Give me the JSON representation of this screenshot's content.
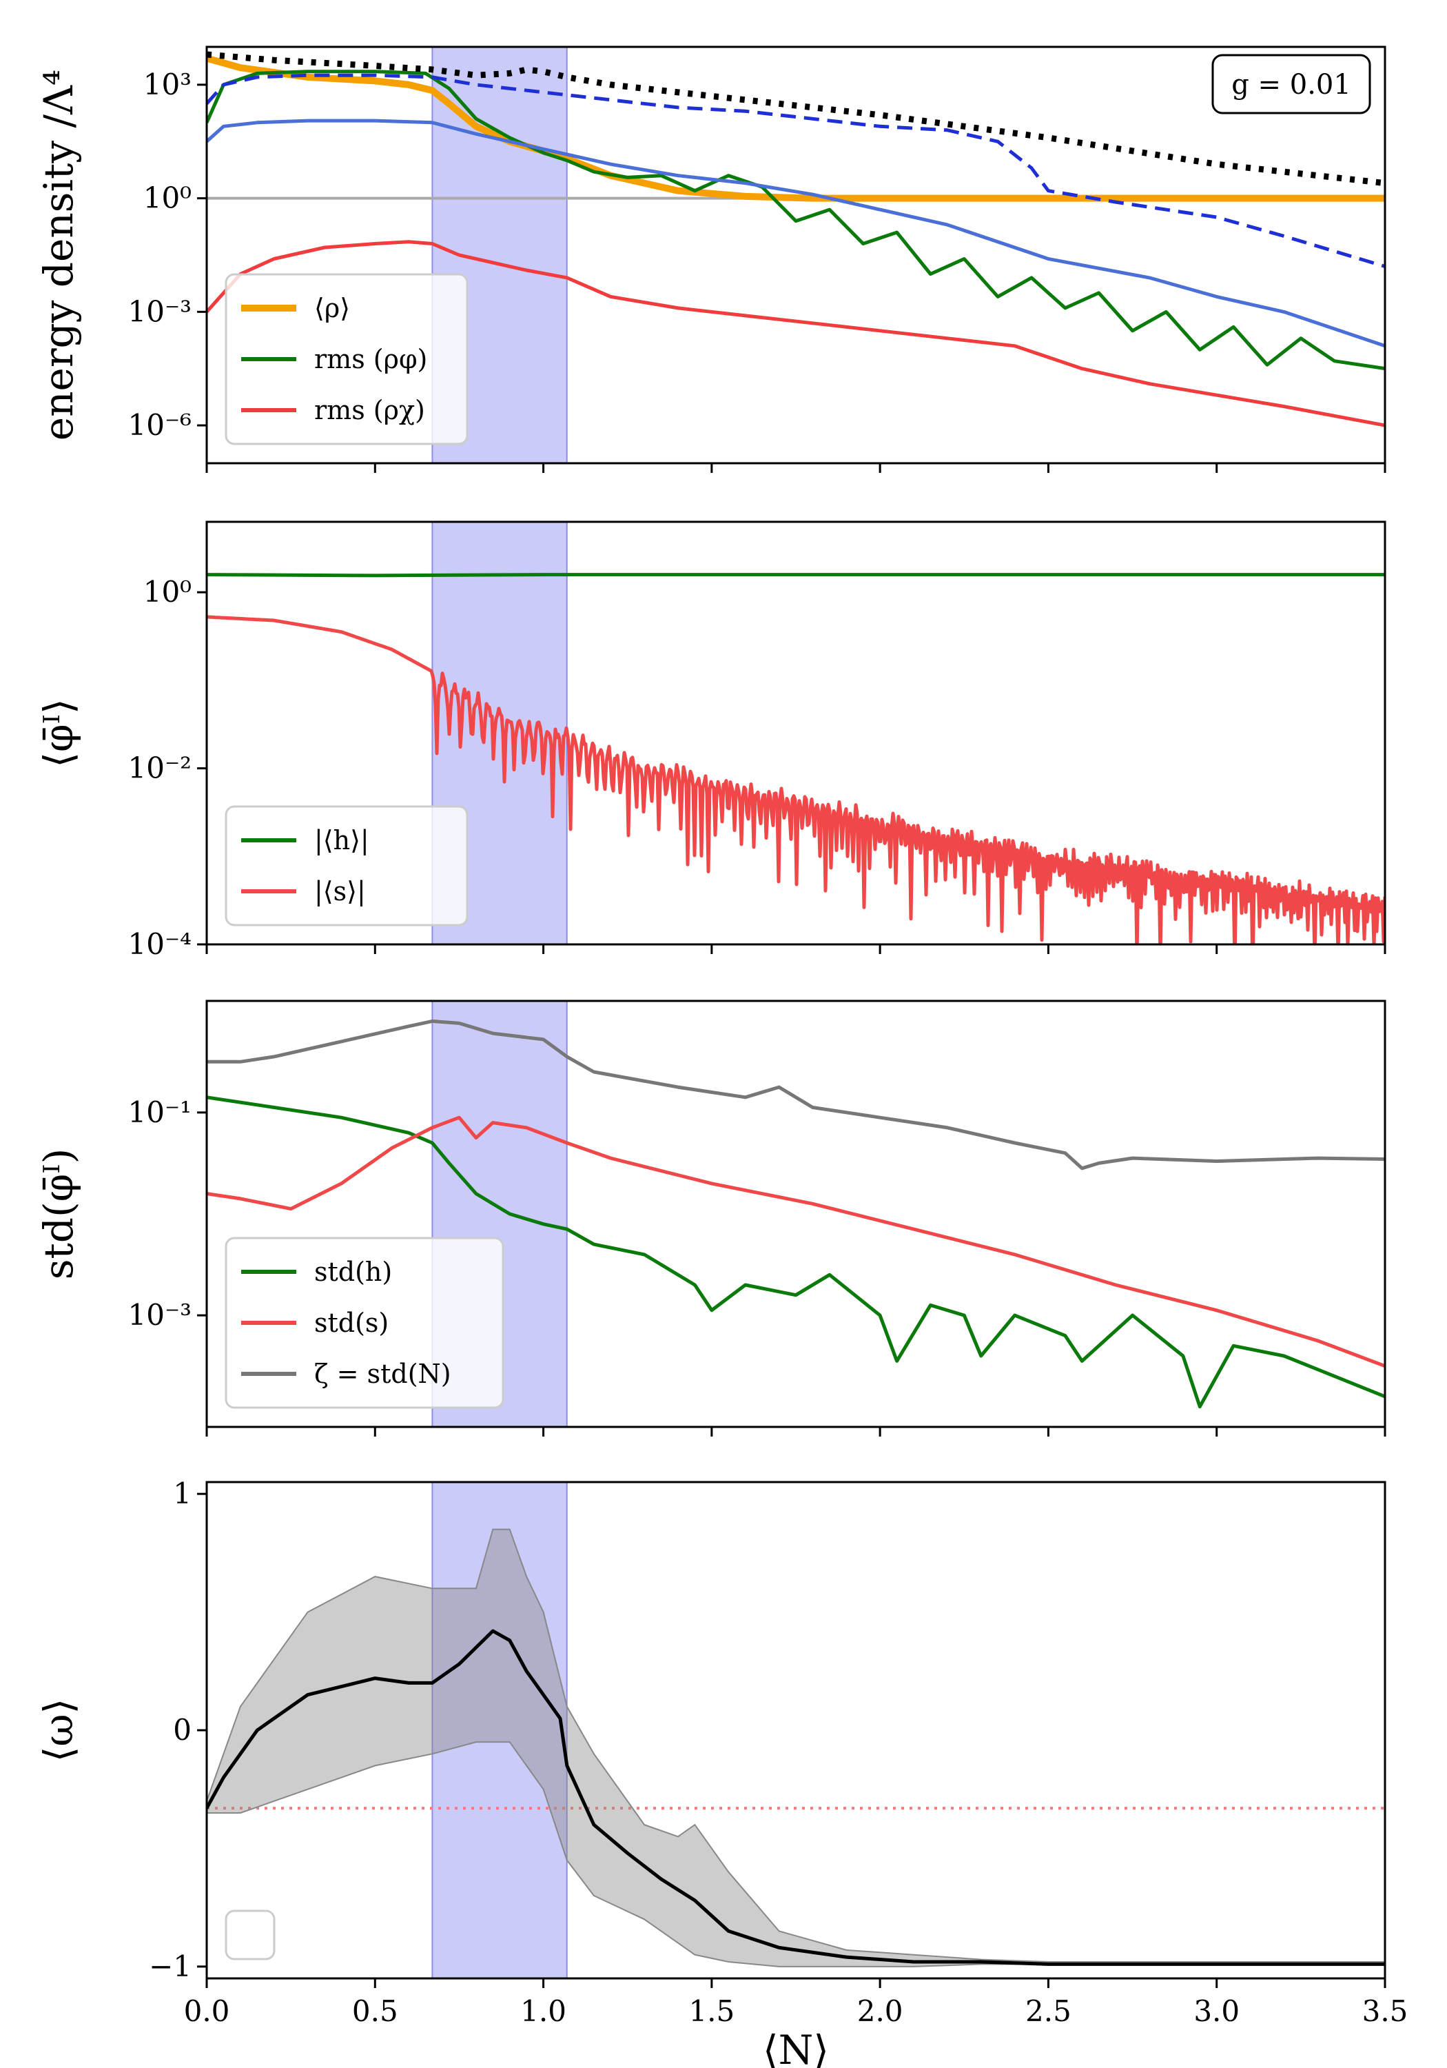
{
  "shared": {
    "shaded_band": {
      "x_start": 0.67,
      "x_end": 1.07,
      "color": "#7777ee"
    },
    "x_axis": {
      "label": "⟨N⟩",
      "range": [
        0.0,
        3.5
      ],
      "ticks": [
        0.0,
        0.5,
        1.0,
        1.5,
        2.0,
        2.5,
        3.0,
        3.5
      ],
      "tick_labels": [
        "0.0",
        "0.5",
        "1.0",
        "1.5",
        "2.0",
        "2.5",
        "3.0",
        "3.5"
      ]
    }
  },
  "chart_data": [
    {
      "type": "line",
      "panel": "energy",
      "ylabel": "energy density /Λ⁴",
      "yscale": "log",
      "ylim_log10": [
        -7,
        4
      ],
      "yticks": [
        {
          "exp": 3,
          "label": "10³"
        },
        {
          "exp": 0,
          "label": "10⁰"
        },
        {
          "exp": -3,
          "label": "10⁻³"
        },
        {
          "exp": -6,
          "label": "10⁻⁶"
        }
      ],
      "annotation": "g = 0.01",
      "legend": {
        "position": "lower-left",
        "entries": [
          {
            "label": "⟨ρ⟩",
            "color": "#f5a000"
          },
          {
            "label": "rms (ρφ)",
            "color": "#0a7a0a"
          },
          {
            "label": "rms (ρχ)",
            "color": "#f03c3c"
          }
        ]
      },
      "reference_line": {
        "y_log10": 0,
        "color": "#aaaaaa"
      },
      "series": [
        {
          "name": "⟨ρ⟩",
          "color": "#f5a000",
          "style": "solid",
          "x": [
            0,
            0.1,
            0.3,
            0.5,
            0.6,
            0.67,
            0.72,
            0.8,
            0.9,
            1.0,
            1.07,
            1.2,
            1.4,
            1.6,
            1.8,
            2.0,
            2.5,
            3.0,
            3.5
          ],
          "y_log10": [
            3.7,
            3.45,
            3.2,
            3.1,
            3.0,
            2.85,
            2.5,
            1.9,
            1.5,
            1.25,
            1.05,
            0.6,
            0.2,
            0.05,
            0.0,
            0.0,
            0.0,
            0.0,
            0.0
          ]
        },
        {
          "name": "rms (ρφ)",
          "color": "#0a7a0a",
          "style": "solid",
          "x": [
            0,
            0.05,
            0.15,
            0.3,
            0.5,
            0.65,
            0.72,
            0.8,
            0.9,
            1.0,
            1.07,
            1.15,
            1.25,
            1.35,
            1.45,
            1.55,
            1.65,
            1.75,
            1.85,
            1.95,
            2.05,
            2.15,
            2.25,
            2.35,
            2.45,
            2.55,
            2.65,
            2.75,
            2.85,
            2.95,
            3.05,
            3.15,
            3.25,
            3.35,
            3.5
          ],
          "y_log10": [
            2.0,
            3.0,
            3.3,
            3.35,
            3.35,
            3.3,
            2.9,
            2.1,
            1.6,
            1.2,
            1.0,
            0.7,
            0.55,
            0.6,
            0.2,
            0.6,
            0.3,
            -0.6,
            -0.3,
            -1.2,
            -0.9,
            -2.0,
            -1.6,
            -2.6,
            -2.1,
            -2.9,
            -2.5,
            -3.5,
            -3.0,
            -4.0,
            -3.4,
            -4.4,
            -3.7,
            -4.3,
            -4.5
          ]
        },
        {
          "name": "rms (ρχ)",
          "color": "#f03c3c",
          "style": "solid",
          "x": [
            0,
            0.1,
            0.2,
            0.35,
            0.5,
            0.6,
            0.67,
            0.75,
            0.85,
            0.95,
            1.07,
            1.2,
            1.4,
            1.6,
            1.8,
            2.0,
            2.2,
            2.4,
            2.6,
            2.8,
            3.0,
            3.2,
            3.5
          ],
          "y_log10": [
            -3.0,
            -2.0,
            -1.6,
            -1.3,
            -1.2,
            -1.15,
            -1.2,
            -1.5,
            -1.7,
            -1.9,
            -2.1,
            -2.6,
            -2.9,
            -3.1,
            -3.3,
            -3.5,
            -3.7,
            -3.9,
            -4.5,
            -4.9,
            -5.2,
            -5.5,
            -6.0
          ]
        },
        {
          "name": "blue",
          "color": "#4a6fd6",
          "style": "solid",
          "x": [
            0,
            0.05,
            0.15,
            0.3,
            0.5,
            0.67,
            0.8,
            1.0,
            1.2,
            1.4,
            1.6,
            1.8,
            2.0,
            2.2,
            2.5,
            2.8,
            3.0,
            3.2,
            3.5
          ],
          "y_log10": [
            1.5,
            1.9,
            2.0,
            2.05,
            2.05,
            2.0,
            1.7,
            1.3,
            0.9,
            0.6,
            0.4,
            0.1,
            -0.3,
            -0.7,
            -1.6,
            -2.1,
            -2.6,
            -3.0,
            -3.9
          ]
        },
        {
          "name": "blue-dashed",
          "color": "#1f2fd6",
          "style": "dashed",
          "x": [
            0,
            0.05,
            0.15,
            0.3,
            0.5,
            0.67,
            0.8,
            1.0,
            1.2,
            1.4,
            1.6,
            1.8,
            2.0,
            2.2,
            2.35,
            2.45,
            2.5,
            2.7,
            3.0,
            3.2,
            3.5
          ],
          "y_log10": [
            2.5,
            3.0,
            3.2,
            3.25,
            3.25,
            3.2,
            3.0,
            2.8,
            2.6,
            2.4,
            2.3,
            2.1,
            1.9,
            1.8,
            1.5,
            0.8,
            0.2,
            -0.1,
            -0.5,
            -1.0,
            -1.8
          ]
        },
        {
          "name": "black-dotted",
          "color": "#000000",
          "style": "dotted",
          "x": [
            0,
            0.2,
            0.5,
            0.67,
            0.8,
            0.9,
            0.95,
            1.0,
            1.07,
            1.2,
            1.5,
            2.0,
            2.5,
            3.0,
            3.5
          ],
          "y_log10": [
            3.8,
            3.65,
            3.5,
            3.4,
            3.25,
            3.3,
            3.4,
            3.35,
            3.2,
            3.0,
            2.7,
            2.2,
            1.6,
            0.9,
            0.4
          ]
        }
      ]
    },
    {
      "type": "line",
      "panel": "field-mean",
      "ylabel": "⟨φ̄ᴵ⟩",
      "yscale": "log",
      "ylim_log10": [
        -4,
        0.8
      ],
      "yticks": [
        {
          "exp": 0,
          "label": "10⁰"
        },
        {
          "exp": -2,
          "label": "10⁻²"
        },
        {
          "exp": -4,
          "label": "10⁻⁴"
        }
      ],
      "legend": {
        "position": "lower-left",
        "entries": [
          {
            "label": "|⟨h⟩|",
            "color": "#0a7a0a"
          },
          {
            "label": "|⟨s⟩|",
            "color": "#f04848"
          }
        ]
      },
      "series": [
        {
          "name": "|⟨h⟩|",
          "color": "#0a7a0a",
          "x": [
            0,
            0.5,
            1.0,
            2.0,
            3.5
          ],
          "y_log10": [
            0.2,
            0.19,
            0.2,
            0.2,
            0.2
          ]
        },
        {
          "name": "|⟨s⟩| envelope",
          "color": "#f04848",
          "x": [
            0,
            0.2,
            0.4,
            0.55,
            0.67,
            0.75,
            0.85,
            0.95,
            1.07,
            1.3,
            1.6,
            2.0,
            2.5,
            3.0,
            3.5
          ],
          "y_log10": [
            -0.28,
            -0.32,
            -0.45,
            -0.65,
            -0.9,
            -1.1,
            -1.3,
            -1.5,
            -1.6,
            -1.95,
            -2.2,
            -2.55,
            -2.95,
            -3.2,
            -3.5
          ]
        }
      ]
    },
    {
      "type": "line",
      "panel": "field-std",
      "ylabel": "std(φ̄ᴵ)",
      "yscale": "log",
      "ylim_log10": [
        -4.1,
        0.1
      ],
      "yticks": [
        {
          "exp": -1,
          "label": "10⁻¹"
        },
        {
          "exp": -3,
          "label": "10⁻³"
        }
      ],
      "legend": {
        "position": "lower-left",
        "entries": [
          {
            "label": "std(h)",
            "color": "#0a7a0a"
          },
          {
            "label": "std(s)",
            "color": "#f04848"
          },
          {
            "label": "ζ = std(N)",
            "color": "#777777"
          }
        ]
      },
      "series": [
        {
          "name": "std(h)",
          "color": "#0a7a0a",
          "x": [
            0,
            0.2,
            0.4,
            0.6,
            0.67,
            0.72,
            0.8,
            0.9,
            1.0,
            1.07,
            1.15,
            1.3,
            1.45,
            1.5,
            1.6,
            1.75,
            1.85,
            2.0,
            2.05,
            2.15,
            2.25,
            2.3,
            2.4,
            2.55,
            2.6,
            2.75,
            2.9,
            2.95,
            3.05,
            3.2,
            3.35,
            3.5
          ],
          "y_log10": [
            -0.85,
            -0.95,
            -1.05,
            -1.2,
            -1.3,
            -1.5,
            -1.8,
            -2.0,
            -2.1,
            -2.15,
            -2.3,
            -2.4,
            -2.7,
            -2.95,
            -2.7,
            -2.8,
            -2.6,
            -3.0,
            -3.45,
            -2.9,
            -3.0,
            -3.4,
            -3.0,
            -3.2,
            -3.45,
            -3.0,
            -3.4,
            -3.9,
            -3.3,
            -3.4,
            -3.6,
            -3.8
          ]
        },
        {
          "name": "std(s)",
          "color": "#f04848",
          "x": [
            0,
            0.1,
            0.25,
            0.4,
            0.55,
            0.67,
            0.75,
            0.8,
            0.85,
            0.95,
            1.07,
            1.2,
            1.5,
            1.8,
            2.1,
            2.4,
            2.7,
            3.0,
            3.3,
            3.5
          ],
          "y_log10": [
            -1.8,
            -1.85,
            -1.95,
            -1.7,
            -1.35,
            -1.15,
            -1.05,
            -1.25,
            -1.1,
            -1.15,
            -1.3,
            -1.45,
            -1.7,
            -1.9,
            -2.15,
            -2.4,
            -2.7,
            -2.95,
            -3.25,
            -3.5
          ]
        },
        {
          "name": "ζ = std(N)",
          "color": "#777777",
          "x": [
            0,
            0.1,
            0.2,
            0.4,
            0.6,
            0.67,
            0.75,
            0.85,
            1.0,
            1.07,
            1.15,
            1.4,
            1.6,
            1.7,
            1.8,
            2.0,
            2.2,
            2.4,
            2.55,
            2.6,
            2.65,
            2.75,
            3.0,
            3.3,
            3.5
          ],
          "y_log10": [
            -0.5,
            -0.5,
            -0.45,
            -0.3,
            -0.15,
            -0.1,
            -0.12,
            -0.22,
            -0.28,
            -0.45,
            -0.6,
            -0.75,
            -0.85,
            -0.75,
            -0.95,
            -1.05,
            -1.15,
            -1.3,
            -1.4,
            -1.55,
            -1.5,
            -1.45,
            -1.48,
            -1.45,
            -1.46
          ]
        }
      ]
    },
    {
      "type": "area",
      "panel": "omega",
      "ylabel": "⟨ω⟩",
      "yscale": "linear",
      "ylim": [
        -1.05,
        1.05
      ],
      "yticks": [
        {
          "value": 1,
          "label": "1"
        },
        {
          "value": 0,
          "label": "0"
        },
        {
          "value": -1,
          "label": "−1"
        }
      ],
      "reference_line": {
        "y": -0.33,
        "color": "#ff7777",
        "style": "dotted"
      },
      "legend": {
        "position": "lower-left",
        "entries": []
      },
      "series": [
        {
          "name": "mean ω",
          "color": "#000000",
          "x": [
            0,
            0.05,
            0.15,
            0.3,
            0.5,
            0.6,
            0.67,
            0.75,
            0.85,
            0.9,
            0.95,
            1.0,
            1.05,
            1.07,
            1.15,
            1.25,
            1.35,
            1.45,
            1.55,
            1.7,
            1.9,
            2.1,
            2.3,
            2.5,
            3.0,
            3.5
          ],
          "y": [
            -0.33,
            -0.2,
            0.0,
            0.15,
            0.22,
            0.2,
            0.2,
            0.28,
            0.42,
            0.38,
            0.25,
            0.15,
            0.05,
            -0.15,
            -0.4,
            -0.52,
            -0.63,
            -0.72,
            -0.85,
            -0.92,
            -0.96,
            -0.98,
            -0.98,
            -0.99,
            -0.99,
            -0.99
          ]
        },
        {
          "name": "upper",
          "color": "#aaaaaa",
          "x": [
            0,
            0.1,
            0.3,
            0.5,
            0.67,
            0.8,
            0.85,
            0.9,
            0.95,
            1.0,
            1.07,
            1.15,
            1.3,
            1.4,
            1.45,
            1.55,
            1.7,
            1.9,
            2.1,
            2.3,
            2.5,
            3.0,
            3.5
          ],
          "y": [
            -0.3,
            0.1,
            0.5,
            0.65,
            0.6,
            0.6,
            0.85,
            0.85,
            0.65,
            0.5,
            0.1,
            -0.1,
            -0.4,
            -0.45,
            -0.4,
            -0.6,
            -0.85,
            -0.93,
            -0.95,
            -0.97,
            -0.98,
            -0.98,
            -0.98
          ]
        },
        {
          "name": "lower",
          "color": "#aaaaaa",
          "x": [
            0,
            0.1,
            0.3,
            0.5,
            0.67,
            0.8,
            0.9,
            1.0,
            1.07,
            1.15,
            1.3,
            1.45,
            1.55,
            1.7,
            1.9,
            2.1,
            2.3,
            2.5,
            3.0,
            3.5
          ],
          "y": [
            -0.35,
            -0.35,
            -0.25,
            -0.15,
            -0.1,
            -0.05,
            -0.05,
            -0.25,
            -0.55,
            -0.7,
            -0.8,
            -0.95,
            -0.98,
            -1.0,
            -1.0,
            -1.0,
            -0.99,
            -0.99,
            -0.99,
            -0.99
          ]
        }
      ]
    }
  ]
}
